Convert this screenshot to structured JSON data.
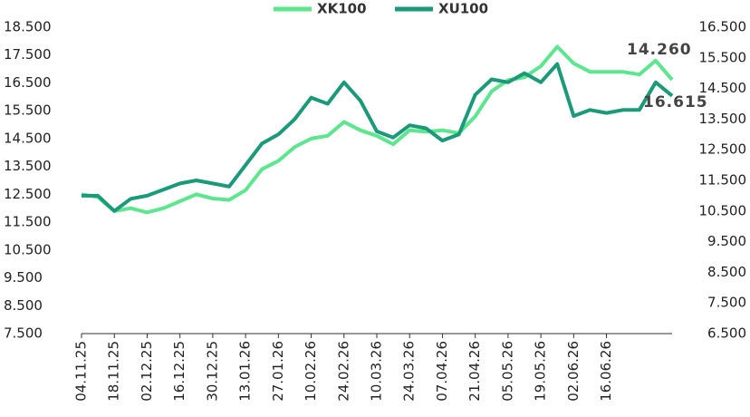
{
  "chart_data": {
    "type": "line",
    "categories": [
      "04.11.25",
      null,
      "18.11.25",
      null,
      "02.12.25",
      null,
      "16.12.25",
      null,
      "30.12.25",
      null,
      "13.01.26",
      null,
      "27.01.26",
      null,
      "10.02.26",
      null,
      "24.02.26",
      null,
      "10.03.26",
      null,
      "24.03.26",
      null,
      "07.04.26",
      null,
      "21.04.26",
      null,
      "05.05.26",
      null,
      "19.05.26",
      null,
      "02.06.26",
      null,
      "16.06.26",
      null,
      null,
      null,
      null
    ],
    "series": [
      {
        "name": "XK100",
        "color": "#5ce68e",
        "axis": "y",
        "values": [
          12500,
          12400,
          11900,
          12000,
          11850,
          12000,
          12250,
          12500,
          12350,
          12300,
          12650,
          13400,
          13700,
          14200,
          14500,
          14600,
          15100,
          14800,
          14600,
          14300,
          14800,
          14750,
          14800,
          14700,
          15300,
          16200,
          16600,
          16700,
          17100,
          17800,
          17200,
          16900,
          16900,
          16900,
          16800,
          17300,
          16615
        ],
        "value_labels": [
          null,
          null,
          null,
          null,
          null,
          null,
          null,
          null,
          null,
          null,
          null,
          null,
          null,
          null,
          null,
          null,
          null,
          null,
          null,
          null,
          null,
          null,
          null,
          null,
          null,
          null,
          null,
          null,
          null,
          null,
          null,
          null,
          null,
          null,
          null,
          null,
          "16.615"
        ]
      },
      {
        "name": "XU100",
        "color": "#1a9a78",
        "axis": "y2",
        "values": [
          11000,
          11000,
          10500,
          10900,
          11000,
          11200,
          11400,
          11500,
          11400,
          11300,
          12000,
          12700,
          13000,
          13500,
          14200,
          14000,
          14700,
          14100,
          13100,
          12900,
          13300,
          13200,
          12800,
          13000,
          14300,
          14800,
          14700,
          15000,
          14700,
          15300,
          13600,
          13800,
          13700,
          13800,
          13800,
          14700,
          14260
        ],
        "value_labels": [
          null,
          null,
          null,
          null,
          null,
          null,
          null,
          null,
          null,
          null,
          null,
          null,
          null,
          null,
          null,
          null,
          null,
          null,
          null,
          null,
          null,
          null,
          null,
          null,
          null,
          null,
          null,
          null,
          null,
          null,
          null,
          null,
          null,
          null,
          null,
          null,
          "14.260"
        ]
      }
    ],
    "ylim": [
      7500,
      18500
    ],
    "yticks": [
      {
        "value": 7500,
        "label": "7.500"
      },
      {
        "value": 8500,
        "label": "8.500"
      },
      {
        "value": 9500,
        "label": "9.500"
      },
      {
        "value": 10500,
        "label": "10.500"
      },
      {
        "value": 11500,
        "label": "11.500"
      },
      {
        "value": 12500,
        "label": "12.500"
      },
      {
        "value": 13500,
        "label": "13.500"
      },
      {
        "value": 14500,
        "label": "14.500"
      },
      {
        "value": 15500,
        "label": "15.500"
      },
      {
        "value": 16500,
        "label": "16.500"
      },
      {
        "value": 17500,
        "label": "17.500"
      },
      {
        "value": 18500,
        "label": "18.500"
      }
    ],
    "y2lim": [
      6500,
      16500
    ],
    "y2ticks": [
      {
        "value": 6500,
        "label": "6.500"
      },
      {
        "value": 7500,
        "label": "7.500"
      },
      {
        "value": 8500,
        "label": "8.500"
      },
      {
        "value": 9500,
        "label": "9.500"
      },
      {
        "value": 10500,
        "label": "10.500"
      },
      {
        "value": 11500,
        "label": "11.500"
      },
      {
        "value": 12500,
        "label": "12.500"
      },
      {
        "value": 13500,
        "label": "13.500"
      },
      {
        "value": 14500,
        "label": "14.500"
      },
      {
        "value": 15500,
        "label": "15.500"
      },
      {
        "value": 16500,
        "label": "16.500"
      }
    ],
    "legend": "top"
  }
}
